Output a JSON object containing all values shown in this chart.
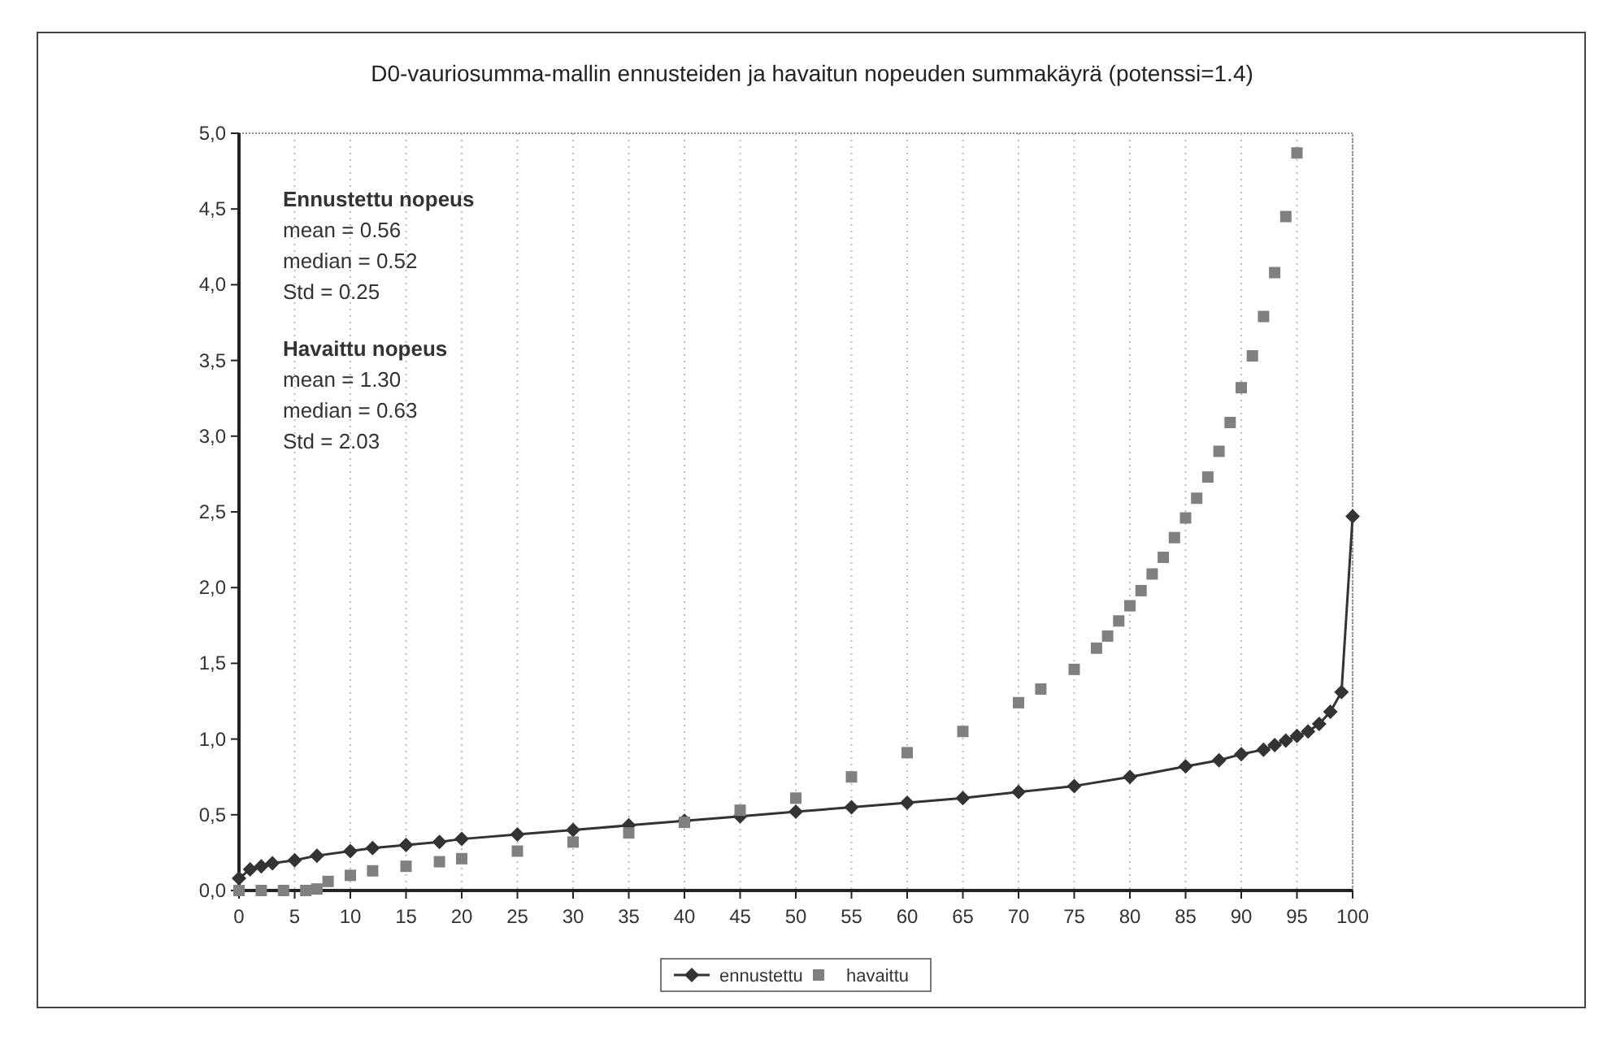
{
  "chart_data": {
    "type": "line",
    "title": "D0-vauriosumma-mallin ennusteiden ja havaitun nopeuden summakäyrä (potenssi=1.4)",
    "xlim": [
      0,
      100
    ],
    "xticks": [
      0,
      5,
      10,
      15,
      20,
      25,
      30,
      35,
      40,
      45,
      50,
      55,
      60,
      65,
      70,
      75,
      80,
      85,
      90,
      95,
      100
    ],
    "ylim": [
      0,
      5
    ],
    "yticks": [
      {
        "value": 0,
        "label": "0,0"
      },
      {
        "value": 0.5,
        "label": "0,5"
      },
      {
        "value": 1,
        "label": "1,0"
      },
      {
        "value": 1.5,
        "label": "1,5"
      },
      {
        "value": 2,
        "label": "2,0"
      },
      {
        "value": 2.5,
        "label": "2,5"
      },
      {
        "value": 3,
        "label": "3,0"
      },
      {
        "value": 3.5,
        "label": "3,5"
      },
      {
        "value": 4,
        "label": "4,0"
      },
      {
        "value": 4.5,
        "label": "4,5"
      },
      {
        "value": 5,
        "label": "5,0"
      }
    ],
    "grid": "x",
    "legend": "bottom",
    "annotations": [
      "Ennustettu nopeus\nmean = 0.56\nmedian = 0.52\nStd  = 0.25",
      "Havaittu nopeus\nmean  = 1.30\nmedian  = 0.63\nStd  = 2.03"
    ],
    "series": [
      {
        "name": "ennustettu",
        "marker": "diamond",
        "color": "#333333",
        "x": [
          0,
          1,
          2,
          3,
          5,
          7,
          10,
          12,
          15,
          18,
          20,
          25,
          30,
          35,
          40,
          45,
          50,
          55,
          60,
          65,
          70,
          75,
          80,
          85,
          88,
          90,
          92,
          93,
          94,
          95,
          96,
          97,
          98,
          99,
          100
        ],
        "values": [
          0.08,
          0.14,
          0.16,
          0.18,
          0.2,
          0.23,
          0.26,
          0.28,
          0.3,
          0.32,
          0.34,
          0.37,
          0.4,
          0.43,
          0.46,
          0.49,
          0.52,
          0.55,
          0.58,
          0.61,
          0.65,
          0.69,
          0.75,
          0.82,
          0.86,
          0.9,
          0.93,
          0.96,
          0.99,
          1.02,
          1.05,
          1.1,
          1.18,
          1.31,
          2.47
        ]
      },
      {
        "name": "havaittu",
        "type": "scatter",
        "marker": "square",
        "color": "#808080",
        "x": [
          0,
          2,
          4,
          6,
          7,
          8,
          10,
          12,
          15,
          18,
          20,
          25,
          30,
          35,
          40,
          45,
          50,
          55,
          60,
          65,
          70,
          72,
          75,
          77,
          78,
          79,
          80,
          81,
          82,
          83,
          84,
          85,
          86,
          87,
          88,
          89,
          90,
          91,
          92,
          93,
          94,
          95
        ],
        "values": [
          0,
          0,
          0,
          0,
          0.01,
          0.06,
          0.1,
          0.13,
          0.16,
          0.19,
          0.21,
          0.26,
          0.32,
          0.38,
          0.45,
          0.53,
          0.61,
          0.75,
          0.91,
          1.05,
          1.24,
          1.33,
          1.46,
          1.6,
          1.68,
          1.78,
          1.88,
          1.98,
          2.09,
          2.2,
          2.33,
          2.46,
          2.59,
          2.73,
          2.9,
          3.09,
          3.32,
          3.53,
          3.79,
          4.08,
          4.45,
          4.87
        ]
      }
    ]
  }
}
